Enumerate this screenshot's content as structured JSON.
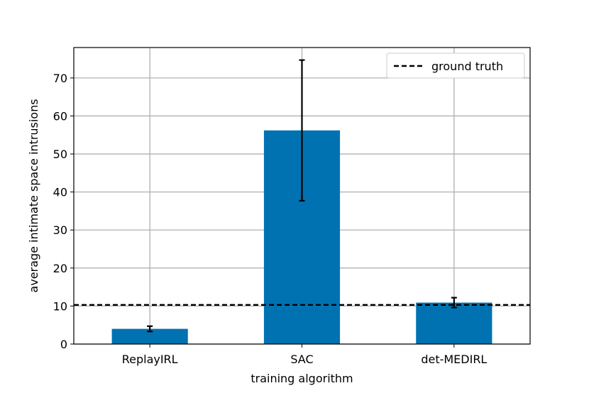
{
  "chart_data": {
    "type": "bar",
    "categories": [
      "ReplayIRL",
      "SAC",
      "det-MEDIRL"
    ],
    "values": [
      4.0,
      56.2,
      10.9
    ],
    "errors": [
      0.7,
      18.5,
      1.3
    ],
    "reference_line": {
      "label": "ground truth",
      "value": 10.3,
      "style": "dashed",
      "color": "#000000"
    },
    "xlabel": "training algorithm",
    "ylabel": "average intimate space intrusions",
    "ylim": [
      0,
      78
    ],
    "yticks": [
      0,
      10,
      20,
      30,
      40,
      50,
      60,
      70
    ],
    "grid": true,
    "legend_position": "top-right",
    "bar_color": "#0072b2",
    "error_color": "#000000"
  }
}
